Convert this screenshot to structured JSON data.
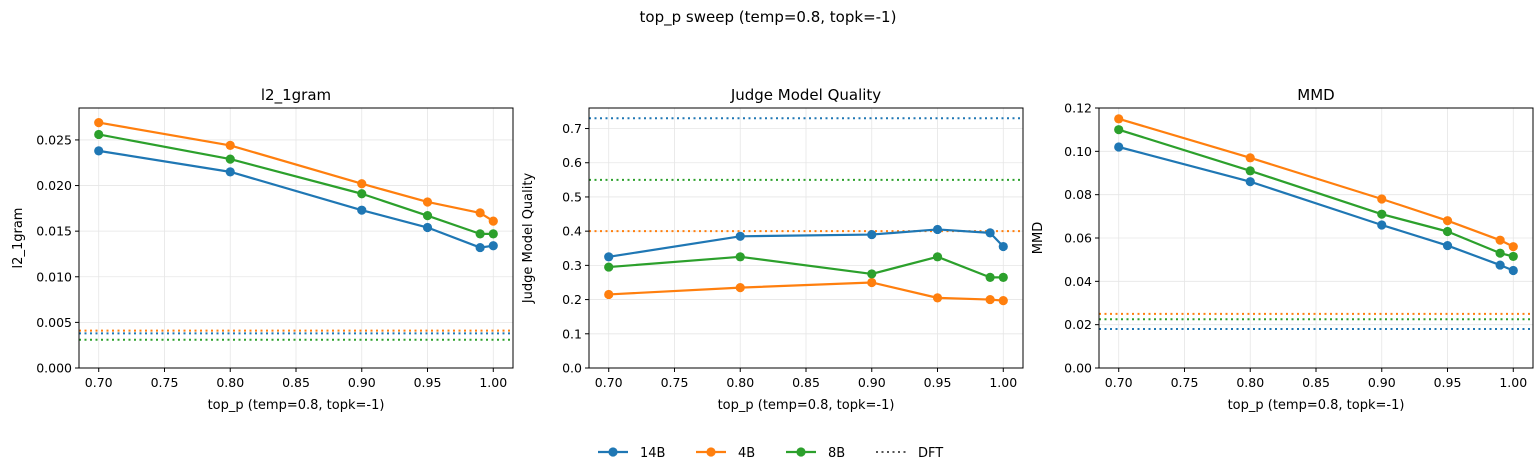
{
  "suptitle": "top_p sweep (temp=0.8, topk=-1)",
  "colors": {
    "14B": "#1f77b4",
    "4B": "#ff7f0e",
    "8B": "#2ca02c"
  },
  "legend": {
    "placement": "bottom-center",
    "entries": [
      {
        "label": "14B",
        "style": "line-marker",
        "color": "#1f77b4"
      },
      {
        "label": "4B",
        "style": "line-marker",
        "color": "#ff7f0e"
      },
      {
        "label": "8B",
        "style": "line-marker",
        "color": "#2ca02c"
      },
      {
        "label": "DFT",
        "style": "dotted",
        "color": "#555555"
      }
    ]
  },
  "chart_data": [
    {
      "type": "line",
      "title": "l2_1gram",
      "xlabel": "top_p (temp=0.8, topk=-1)",
      "ylabel": "l2_1gram",
      "xlim": [
        0.685,
        1.015
      ],
      "ylim": [
        0,
        0.0285
      ],
      "xticks": [
        0.7,
        0.75,
        0.8,
        0.85,
        0.9,
        0.95,
        1.0
      ],
      "xtick_labels": [
        "0.70",
        "0.75",
        "0.80",
        "0.85",
        "0.90",
        "0.95",
        "1.00"
      ],
      "yticks": [
        0,
        0.005,
        0.01,
        0.015,
        0.02,
        0.025
      ],
      "ytick_labels": [
        "0.000",
        "0.005",
        "0.010",
        "0.015",
        "0.020",
        "0.025"
      ],
      "grid": true,
      "x": [
        0.7,
        0.8,
        0.9,
        0.95,
        0.99,
        1.0
      ],
      "series": [
        {
          "name": "14B",
          "color": "#1f77b4",
          "values": [
            0.0238,
            0.0215,
            0.0173,
            0.0154,
            0.0132,
            0.0134
          ]
        },
        {
          "name": "4B",
          "color": "#ff7f0e",
          "values": [
            0.0269,
            0.0244,
            0.0202,
            0.0182,
            0.017,
            0.0161
          ]
        },
        {
          "name": "8B",
          "color": "#2ca02c",
          "values": [
            0.0256,
            0.0229,
            0.0191,
            0.0167,
            0.0147,
            0.0147
          ]
        }
      ],
      "baselines": [
        {
          "name": "4B",
          "color": "#ff7f0e",
          "value": 0.0041
        },
        {
          "name": "14B",
          "color": "#1f77b4",
          "value": 0.0038
        },
        {
          "name": "8B",
          "color": "#2ca02c",
          "value": 0.0031
        }
      ]
    },
    {
      "type": "line",
      "title": "Judge Model Quality",
      "xlabel": "top_p (temp=0.8, topk=-1)",
      "ylabel": "Judge Model Quality",
      "xlim": [
        0.685,
        1.015
      ],
      "ylim": [
        0,
        0.76
      ],
      "xticks": [
        0.7,
        0.75,
        0.8,
        0.85,
        0.9,
        0.95,
        1.0
      ],
      "xtick_labels": [
        "0.70",
        "0.75",
        "0.80",
        "0.85",
        "0.90",
        "0.95",
        "1.00"
      ],
      "yticks": [
        0,
        0.1,
        0.2,
        0.3,
        0.4,
        0.5,
        0.6,
        0.7
      ],
      "ytick_labels": [
        "0.0",
        "0.1",
        "0.2",
        "0.3",
        "0.4",
        "0.5",
        "0.6",
        "0.7"
      ],
      "grid": true,
      "x": [
        0.7,
        0.8,
        0.9,
        0.95,
        0.99,
        1.0
      ],
      "series": [
        {
          "name": "14B",
          "color": "#1f77b4",
          "values": [
            0.325,
            0.385,
            0.39,
            0.405,
            0.395,
            0.355
          ]
        },
        {
          "name": "4B",
          "color": "#ff7f0e",
          "values": [
            0.215,
            0.235,
            0.25,
            0.205,
            0.2,
            0.197
          ]
        },
        {
          "name": "8B",
          "color": "#2ca02c",
          "values": [
            0.295,
            0.325,
            0.275,
            0.325,
            0.265,
            0.265
          ]
        }
      ],
      "baselines": [
        {
          "name": "14B",
          "color": "#1f77b4",
          "value": 0.73
        },
        {
          "name": "8B",
          "color": "#2ca02c",
          "value": 0.55
        },
        {
          "name": "4B",
          "color": "#ff7f0e",
          "value": 0.4
        }
      ]
    },
    {
      "type": "line",
      "title": "MMD",
      "xlabel": "top_p (temp=0.8, topk=-1)",
      "ylabel": "MMD",
      "xlim": [
        0.685,
        1.015
      ],
      "ylim": [
        0,
        0.12
      ],
      "xticks": [
        0.7,
        0.75,
        0.8,
        0.85,
        0.9,
        0.95,
        1.0
      ],
      "xtick_labels": [
        "0.70",
        "0.75",
        "0.80",
        "0.85",
        "0.90",
        "0.95",
        "1.00"
      ],
      "yticks": [
        0,
        0.02,
        0.04,
        0.06,
        0.08,
        0.1,
        0.12
      ],
      "ytick_labels": [
        "0.00",
        "0.02",
        "0.04",
        "0.06",
        "0.08",
        "0.10",
        "0.12"
      ],
      "grid": true,
      "x": [
        0.7,
        0.8,
        0.9,
        0.95,
        0.99,
        1.0
      ],
      "series": [
        {
          "name": "14B",
          "color": "#1f77b4",
          "values": [
            0.102,
            0.086,
            0.066,
            0.0565,
            0.0475,
            0.045
          ]
        },
        {
          "name": "4B",
          "color": "#ff7f0e",
          "values": [
            0.115,
            0.097,
            0.078,
            0.068,
            0.059,
            0.056
          ]
        },
        {
          "name": "8B",
          "color": "#2ca02c",
          "values": [
            0.11,
            0.091,
            0.071,
            0.063,
            0.053,
            0.0515
          ]
        }
      ],
      "baselines": [
        {
          "name": "4B",
          "color": "#ff7f0e",
          "value": 0.025
        },
        {
          "name": "8B",
          "color": "#2ca02c",
          "value": 0.0225
        },
        {
          "name": "14B",
          "color": "#1f77b4",
          "value": 0.018
        }
      ]
    }
  ]
}
